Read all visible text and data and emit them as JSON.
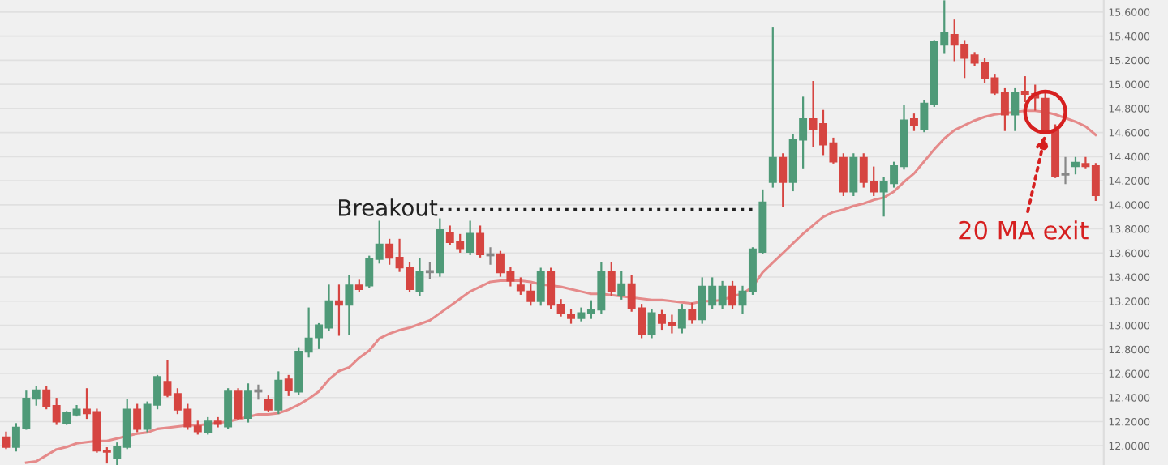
{
  "chart_data": {
    "type": "candlestick",
    "categories": [
      null,
      null,
      null,
      null,
      null,
      null,
      null,
      null,
      null,
      null,
      null,
      null,
      null,
      null,
      null,
      null,
      null,
      null,
      null,
      null,
      null,
      null,
      null,
      null,
      null,
      null,
      null,
      null,
      null,
      null,
      null,
      null,
      null,
      null,
      null,
      null,
      null,
      null,
      null,
      null,
      null,
      null,
      null,
      null,
      null,
      null,
      null,
      null,
      null,
      null,
      null,
      null,
      null,
      null,
      null,
      null,
      null,
      null,
      null,
      null,
      null,
      null,
      null,
      null,
      null,
      null,
      null,
      null,
      null,
      null,
      null,
      null,
      null,
      null,
      null,
      null,
      null,
      null,
      null,
      null,
      null,
      null,
      null,
      null,
      null,
      null,
      null,
      null,
      null,
      null,
      null,
      null,
      null,
      null,
      null,
      null,
      null,
      null,
      null,
      null,
      null,
      null,
      null,
      null,
      null,
      null,
      null,
      null,
      null
    ],
    "ohlc": [
      [
        12.07,
        12.11,
        11.98,
        11.99
      ],
      [
        11.99,
        12.18,
        11.96,
        12.15
      ],
      [
        12.15,
        12.45,
        12.14,
        12.39
      ],
      [
        12.39,
        12.49,
        12.34,
        12.46
      ],
      [
        12.46,
        12.49,
        12.31,
        12.33
      ],
      [
        12.33,
        12.39,
        12.18,
        12.2
      ],
      [
        12.19,
        12.28,
        12.18,
        12.27
      ],
      [
        12.26,
        12.33,
        12.25,
        12.3
      ],
      [
        12.3,
        12.47,
        12.23,
        12.27
      ],
      [
        12.28,
        12.3,
        11.95,
        11.96
      ],
      [
        11.96,
        11.98,
        11.86,
        11.95
      ],
      [
        11.9,
        12.02,
        11.84,
        11.99
      ],
      [
        11.99,
        12.38,
        11.98,
        12.3
      ],
      [
        12.3,
        12.34,
        12.12,
        12.14
      ],
      [
        12.14,
        12.36,
        12.12,
        12.34
      ],
      [
        12.34,
        12.58,
        12.31,
        12.57
      ],
      [
        12.53,
        12.7,
        12.41,
        12.42
      ],
      [
        12.43,
        12.47,
        12.27,
        12.3
      ],
      [
        12.3,
        12.34,
        12.14,
        12.16
      ],
      [
        12.16,
        12.2,
        12.1,
        12.12
      ],
      [
        12.11,
        12.23,
        12.1,
        12.2
      ],
      [
        12.2,
        12.23,
        12.16,
        12.18
      ],
      [
        12.16,
        12.47,
        12.15,
        12.45
      ],
      [
        12.45,
        12.47,
        12.22,
        12.23
      ],
      [
        12.23,
        12.51,
        12.2,
        12.45
      ],
      [
        12.45,
        12.5,
        12.39,
        12.46
      ],
      [
        12.38,
        12.41,
        12.29,
        12.3
      ],
      [
        12.3,
        12.61,
        12.27,
        12.54
      ],
      [
        12.55,
        12.58,
        12.42,
        12.46
      ],
      [
        12.45,
        12.81,
        12.43,
        12.78
      ],
      [
        12.78,
        13.14,
        12.74,
        12.89
      ],
      [
        12.9,
        13.01,
        12.81,
        13.0
      ],
      [
        12.98,
        13.33,
        12.96,
        13.2
      ],
      [
        13.2,
        13.33,
        12.92,
        13.17
      ],
      [
        13.17,
        13.41,
        12.93,
        13.33
      ],
      [
        13.33,
        13.37,
        13.28,
        13.3
      ],
      [
        13.33,
        13.57,
        13.32,
        13.55
      ],
      [
        13.55,
        13.86,
        13.52,
        13.67
      ],
      [
        13.67,
        13.71,
        13.51,
        13.56
      ],
      [
        13.56,
        13.71,
        13.45,
        13.48
      ],
      [
        13.48,
        13.52,
        13.28,
        13.3
      ],
      [
        13.28,
        13.55,
        13.25,
        13.44
      ],
      [
        13.44,
        13.52,
        13.39,
        13.45
      ],
      [
        13.44,
        13.88,
        13.41,
        13.79
      ],
      [
        13.77,
        13.82,
        13.67,
        13.69
      ],
      [
        13.69,
        13.75,
        13.61,
        13.64
      ],
      [
        13.61,
        13.86,
        13.59,
        13.76
      ],
      [
        13.76,
        13.82,
        13.57,
        13.59
      ],
      [
        13.58,
        13.64,
        13.51,
        13.59
      ],
      [
        13.59,
        13.61,
        13.41,
        13.44
      ],
      [
        13.44,
        13.48,
        13.33,
        13.37
      ],
      [
        13.33,
        13.39,
        13.26,
        13.29
      ],
      [
        13.28,
        13.34,
        13.17,
        13.2
      ],
      [
        13.2,
        13.47,
        13.17,
        13.44
      ],
      [
        13.44,
        13.47,
        13.14,
        13.17
      ],
      [
        13.17,
        13.21,
        13.08,
        13.1
      ],
      [
        13.09,
        13.13,
        13.02,
        13.06
      ],
      [
        13.06,
        13.14,
        13.04,
        13.1
      ],
      [
        13.1,
        13.2,
        13.06,
        13.13
      ],
      [
        13.13,
        13.52,
        13.1,
        13.44
      ],
      [
        13.44,
        13.52,
        13.25,
        13.28
      ],
      [
        13.25,
        13.44,
        13.22,
        13.34
      ],
      [
        13.34,
        13.41,
        13.12,
        13.14
      ],
      [
        13.14,
        13.17,
        12.9,
        12.93
      ],
      [
        12.93,
        13.13,
        12.9,
        13.1
      ],
      [
        13.09,
        13.12,
        12.97,
        13.02
      ],
      [
        13.02,
        13.08,
        12.94,
        13.0
      ],
      [
        12.98,
        13.17,
        12.94,
        13.13
      ],
      [
        13.13,
        13.18,
        13.02,
        13.05
      ],
      [
        13.05,
        13.39,
        13.02,
        13.32
      ],
      [
        13.17,
        13.39,
        13.14,
        13.32
      ],
      [
        13.17,
        13.36,
        13.14,
        13.32
      ],
      [
        13.32,
        13.36,
        13.14,
        13.17
      ],
      [
        13.17,
        13.32,
        13.1,
        13.28
      ],
      [
        13.28,
        13.64,
        13.26,
        13.63
      ],
      [
        13.61,
        14.12,
        13.6,
        14.02
      ],
      [
        14.19,
        15.47,
        14.15,
        14.39
      ],
      [
        14.39,
        14.42,
        13.99,
        14.19
      ],
      [
        14.19,
        14.58,
        14.12,
        14.54
      ],
      [
        14.54,
        14.89,
        14.31,
        14.71
      ],
      [
        14.71,
        15.02,
        14.49,
        14.63
      ],
      [
        14.67,
        14.78,
        14.42,
        14.5
      ],
      [
        14.51,
        14.55,
        14.35,
        14.36
      ],
      [
        14.39,
        14.42,
        14.08,
        14.11
      ],
      [
        14.11,
        14.42,
        14.08,
        14.39
      ],
      [
        14.39,
        14.42,
        14.15,
        14.19
      ],
      [
        14.19,
        14.31,
        14.08,
        14.11
      ],
      [
        14.11,
        14.22,
        13.91,
        14.19
      ],
      [
        14.18,
        14.35,
        14.15,
        14.32
      ],
      [
        14.32,
        14.82,
        14.3,
        14.7
      ],
      [
        14.71,
        14.75,
        14.62,
        14.66
      ],
      [
        14.63,
        14.86,
        14.61,
        14.84
      ],
      [
        14.84,
        15.36,
        14.82,
        15.35
      ],
      [
        15.33,
        15.69,
        15.26,
        15.43
      ],
      [
        15.41,
        15.53,
        15.2,
        15.33
      ],
      [
        15.33,
        15.36,
        15.06,
        15.22
      ],
      [
        15.24,
        15.26,
        15.16,
        15.18
      ],
      [
        15.18,
        15.21,
        15.02,
        15.05
      ],
      [
        15.05,
        15.08,
        14.92,
        14.93
      ],
      [
        14.93,
        14.96,
        14.62,
        14.75
      ],
      [
        14.75,
        14.96,
        14.62,
        14.93
      ],
      [
        14.94,
        15.06,
        14.86,
        14.92
      ],
      [
        14.92,
        14.99,
        14.79,
        14.89
      ],
      [
        14.88,
        14.92,
        14.61,
        14.62
      ],
      [
        14.62,
        14.66,
        14.23,
        14.24
      ],
      [
        14.25,
        14.39,
        14.18,
        14.26
      ],
      [
        14.32,
        14.39,
        14.26,
        14.35
      ],
      [
        14.34,
        14.39,
        14.31,
        14.32
      ],
      [
        14.32,
        14.34,
        14.04,
        14.08
      ]
    ],
    "colors": [
      "#d64541",
      "#4f9a78",
      "#4f9a78",
      "#4f9a78",
      "#d64541",
      "#d64541",
      "#4f9a78",
      "#4f9a78",
      "#d64541",
      "#d64541",
      "#d64541",
      "#4f9a78",
      "#4f9a78",
      "#d64541",
      "#4f9a78",
      "#4f9a78",
      "#d64541",
      "#d64541",
      "#d64541",
      "#d64541",
      "#4f9a78",
      "#d64541",
      "#4f9a78",
      "#d64541",
      "#4f9a78",
      "#888888",
      "#d64541",
      "#4f9a78",
      "#d64541",
      "#4f9a78",
      "#4f9a78",
      "#4f9a78",
      "#4f9a78",
      "#d64541",
      "#4f9a78",
      "#d64541",
      "#4f9a78",
      "#4f9a78",
      "#d64541",
      "#d64541",
      "#d64541",
      "#4f9a78",
      "#888888",
      "#4f9a78",
      "#d64541",
      "#d64541",
      "#4f9a78",
      "#d64541",
      "#888888",
      "#d64541",
      "#d64541",
      "#d64541",
      "#d64541",
      "#4f9a78",
      "#d64541",
      "#d64541",
      "#d64541",
      "#4f9a78",
      "#4f9a78",
      "#4f9a78",
      "#d64541",
      "#4f9a78",
      "#d64541",
      "#d64541",
      "#4f9a78",
      "#d64541",
      "#d64541",
      "#4f9a78",
      "#d64541",
      "#4f9a78",
      "#4f9a78",
      "#4f9a78",
      "#d64541",
      "#4f9a78",
      "#4f9a78",
      "#4f9a78",
      "#4f9a78",
      "#d64541",
      "#4f9a78",
      "#4f9a78",
      "#d64541",
      "#d64541",
      "#d64541",
      "#d64541",
      "#4f9a78",
      "#d64541",
      "#d64541",
      "#4f9a78",
      "#4f9a78",
      "#4f9a78",
      "#d64541",
      "#4f9a78",
      "#4f9a78",
      "#4f9a78",
      "#d64541",
      "#d64541",
      "#d64541",
      "#d64541",
      "#d64541",
      "#d64541",
      "#4f9a78",
      "#d64541",
      "#d64541",
      "#d64541",
      "#d64541",
      "#888888",
      "#4f9a78",
      "#d64541",
      "#d64541"
    ],
    "series": [
      {
        "type": "line",
        "color": "#e58a8a",
        "line_style": "solid",
        "values": [
          null,
          null,
          11.86,
          11.87,
          11.92,
          11.97,
          11.99,
          12.02,
          12.03,
          12.04,
          12.04,
          12.06,
          12.08,
          12.1,
          12.11,
          12.14,
          12.15,
          12.16,
          12.17,
          12.17,
          12.18,
          12.19,
          12.2,
          12.22,
          12.24,
          12.26,
          12.26,
          12.27,
          12.3,
          12.34,
          12.39,
          12.45,
          12.55,
          12.62,
          12.65,
          12.73,
          12.79,
          12.89,
          12.93,
          12.96,
          12.98,
          13.01,
          13.04,
          13.1,
          13.16,
          13.22,
          13.28,
          13.32,
          13.36,
          13.37,
          13.37,
          13.37,
          13.36,
          13.34,
          13.33,
          13.32,
          13.3,
          13.28,
          13.26,
          13.26,
          13.25,
          13.24,
          13.23,
          13.22,
          13.21,
          13.21,
          13.2,
          13.19,
          13.18,
          13.2,
          13.2,
          13.21,
          13.24,
          13.26,
          13.32,
          13.44,
          13.52,
          13.6,
          13.68,
          13.76,
          13.83,
          13.9,
          13.94,
          13.96,
          13.99,
          14.01,
          14.04,
          14.06,
          14.11,
          14.19,
          14.26,
          14.36,
          14.46,
          14.55,
          14.62,
          14.66,
          14.7,
          14.73,
          14.75,
          14.76,
          14.77,
          14.78,
          14.78,
          14.77,
          14.75,
          14.72,
          14.69,
          14.65,
          14.58
        ]
      },
      {
        "type": "line",
        "name": "Breakout",
        "color": "#222222",
        "line_style": "dotted",
        "values": [
          null,
          null,
          null,
          null,
          null,
          null,
          null,
          null,
          null,
          null,
          null,
          null,
          null,
          null,
          null,
          null,
          null,
          null,
          null,
          null,
          null,
          null,
          null,
          null,
          null,
          null,
          null,
          null,
          null,
          null,
          null,
          null,
          null,
          null,
          null,
          null,
          null,
          null,
          null,
          null,
          null,
          null,
          null,
          13.96,
          13.96,
          13.96,
          13.96,
          13.96,
          13.96,
          13.96,
          13.96,
          13.96,
          13.96,
          13.96,
          13.96,
          13.96,
          13.96,
          13.96,
          13.96,
          13.96,
          13.96,
          13.96,
          13.96,
          13.96,
          13.96,
          13.96,
          13.96,
          13.96,
          13.96,
          13.96,
          13.96,
          13.96,
          13.96,
          13.96,
          13.96,
          null,
          null,
          null,
          null,
          null,
          null,
          null,
          null,
          null,
          null,
          null,
          null,
          null,
          null,
          null,
          null,
          null,
          null,
          null,
          null,
          null,
          null,
          null,
          null,
          null,
          null,
          null,
          null,
          null,
          null,
          null,
          null,
          null,
          null
        ]
      }
    ],
    "annotations": [
      "20 MA exit"
    ],
    "ylim": [
      11.84,
      15.7
    ],
    "yticks": [
      {
        "value": 12.0,
        "label": "12.0000"
      },
      {
        "value": 12.2,
        "label": "12.2000"
      },
      {
        "value": 12.4,
        "label": "12.4000"
      },
      {
        "value": 12.6,
        "label": "12.6000"
      },
      {
        "value": 12.8,
        "label": "12.8000"
      },
      {
        "value": 13.0,
        "label": "13.0000"
      },
      {
        "value": 13.2,
        "label": "13.2000"
      },
      {
        "value": 13.4,
        "label": "13.4000"
      },
      {
        "value": 13.6,
        "label": "13.6000"
      },
      {
        "value": 13.8,
        "label": "13.8000"
      },
      {
        "value": 14.0,
        "label": "14.0000"
      },
      {
        "value": 14.2,
        "label": "14.2000"
      },
      {
        "value": 14.4,
        "label": "14.4000"
      },
      {
        "value": 14.6,
        "label": "14.6000"
      },
      {
        "value": 14.8,
        "label": "14.8000"
      },
      {
        "value": 15.0,
        "label": "15.0000"
      },
      {
        "value": 15.2,
        "label": "15.2000"
      },
      {
        "value": 15.4,
        "label": "15.4000"
      },
      {
        "value": 15.6,
        "label": "15.6000"
      }
    ],
    "tick_labels": "y",
    "grid": "y"
  }
}
